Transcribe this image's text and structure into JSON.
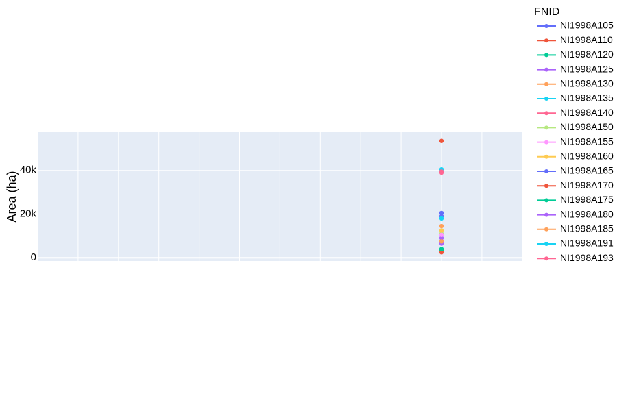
{
  "chart_data": {
    "type": "line",
    "title": "",
    "xlabel": "",
    "ylabel": "Area (ha)",
    "ylim": [
      -1500,
      57500
    ],
    "yticks": [
      0,
      20000,
      40000
    ],
    "ytick_labels": [
      "0",
      "20k",
      "40k"
    ],
    "grid": true,
    "legend_title": "FNID",
    "legend_position": "right",
    "series": [
      {
        "name": "NI1998A105",
        "color": "#636efa",
        "values": [
          19000
        ]
      },
      {
        "name": "NI1998A110",
        "color": "#EF553B",
        "values": [
          53500
        ]
      },
      {
        "name": "NI1998A120",
        "color": "#00cc96",
        "values": [
          3500
        ]
      },
      {
        "name": "NI1998A125",
        "color": "#ab63fa",
        "values": [
          9000
        ]
      },
      {
        "name": "NI1998A130",
        "color": "#FFA15A",
        "values": [
          14500
        ]
      },
      {
        "name": "NI1998A135",
        "color": "#19d3f3",
        "values": [
          40500
        ]
      },
      {
        "name": "NI1998A140",
        "color": "#FF6692",
        "values": [
          39000
        ]
      },
      {
        "name": "NI1998A150",
        "color": "#B6E880",
        "values": [
          11000
        ]
      },
      {
        "name": "NI1998A155",
        "color": "#FF97FF",
        "values": [
          10500
        ]
      },
      {
        "name": "NI1998A160",
        "color": "#FECB52",
        "values": [
          12500
        ]
      },
      {
        "name": "NI1998A165",
        "color": "#636efa",
        "values": [
          20500
        ]
      },
      {
        "name": "NI1998A170",
        "color": "#EF553B",
        "values": [
          2500
        ]
      },
      {
        "name": "NI1998A175",
        "color": "#00cc96",
        "values": [
          4000
        ]
      },
      {
        "name": "NI1998A180",
        "color": "#ab63fa",
        "values": [
          6500
        ]
      },
      {
        "name": "NI1998A185",
        "color": "#FFA15A",
        "values": [
          7500
        ]
      },
      {
        "name": "NI1998A191",
        "color": "#19d3f3",
        "values": [
          18000
        ]
      },
      {
        "name": "NI1998A193",
        "color": "#FF6692",
        "values": [
          39500
        ]
      }
    ]
  }
}
